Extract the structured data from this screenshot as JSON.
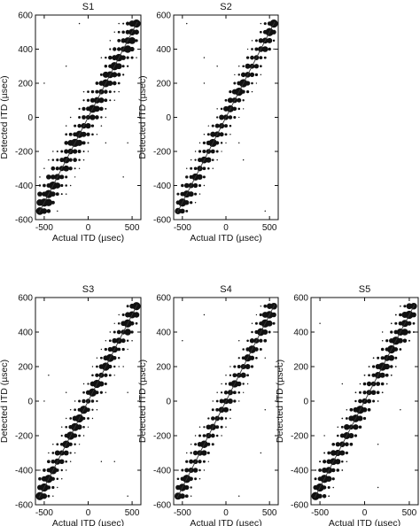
{
  "chart_data": [
    {
      "type": "scatter",
      "title": "S1",
      "xlabel": "Actual ITD (µsec)",
      "ylabel": "Detected ITD (µsec)",
      "xlim": [
        -600,
        600
      ],
      "ylim": [
        -600,
        600
      ],
      "xticks": [
        -500,
        0,
        500
      ],
      "yticks": [
        -600,
        -400,
        -200,
        0,
        200,
        400,
        600
      ],
      "reference_line": "y = x",
      "marker": "filled circle, size proportional to response count"
    },
    {
      "type": "scatter",
      "title": "S2",
      "xlabel": "Actual ITD (µsec)",
      "ylabel": "Detected ITD (µsec)",
      "xlim": [
        -600,
        600
      ],
      "ylim": [
        -600,
        600
      ],
      "xticks": [
        -500,
        0,
        500
      ],
      "yticks": [
        -600,
        -400,
        -200,
        0,
        200,
        400,
        600
      ],
      "reference_line": "y = x",
      "marker": "filled circle, size proportional to response count"
    },
    {
      "type": "scatter",
      "title": "S3",
      "xlabel": "Actual ITD (µsec)",
      "ylabel": "Detected ITD (µsec)",
      "xlim": [
        -600,
        600
      ],
      "ylim": [
        -600,
        600
      ],
      "xticks": [
        -500,
        0,
        500
      ],
      "yticks": [
        -600,
        -400,
        -200,
        0,
        200,
        400,
        600
      ],
      "reference_line": "y = x",
      "marker": "filled circle, size proportional to response count"
    },
    {
      "type": "scatter",
      "title": "S4",
      "xlabel": "Actual ITD (µsec)",
      "ylabel": "Detected ITD (µsec)",
      "xlim": [
        -600,
        600
      ],
      "ylim": [
        -600,
        600
      ],
      "xticks": [
        -500,
        0,
        500
      ],
      "yticks": [
        -600,
        -400,
        -200,
        0,
        200,
        400,
        600
      ],
      "reference_line": "y = x",
      "marker": "filled circle, size proportional to response count"
    },
    {
      "type": "scatter",
      "title": "S5",
      "xlabel": "Actual ITD (µsec)",
      "ylabel": "Detected ITD (µsec)",
      "xlim": [
        -600,
        600
      ],
      "ylim": [
        -600,
        600
      ],
      "xticks": [
        -500,
        0,
        500
      ],
      "yticks": [
        -600,
        -400,
        -200,
        0,
        200,
        400,
        600
      ],
      "reference_line": "y = x",
      "marker": "filled circle, size proportional to response count"
    }
  ]
}
